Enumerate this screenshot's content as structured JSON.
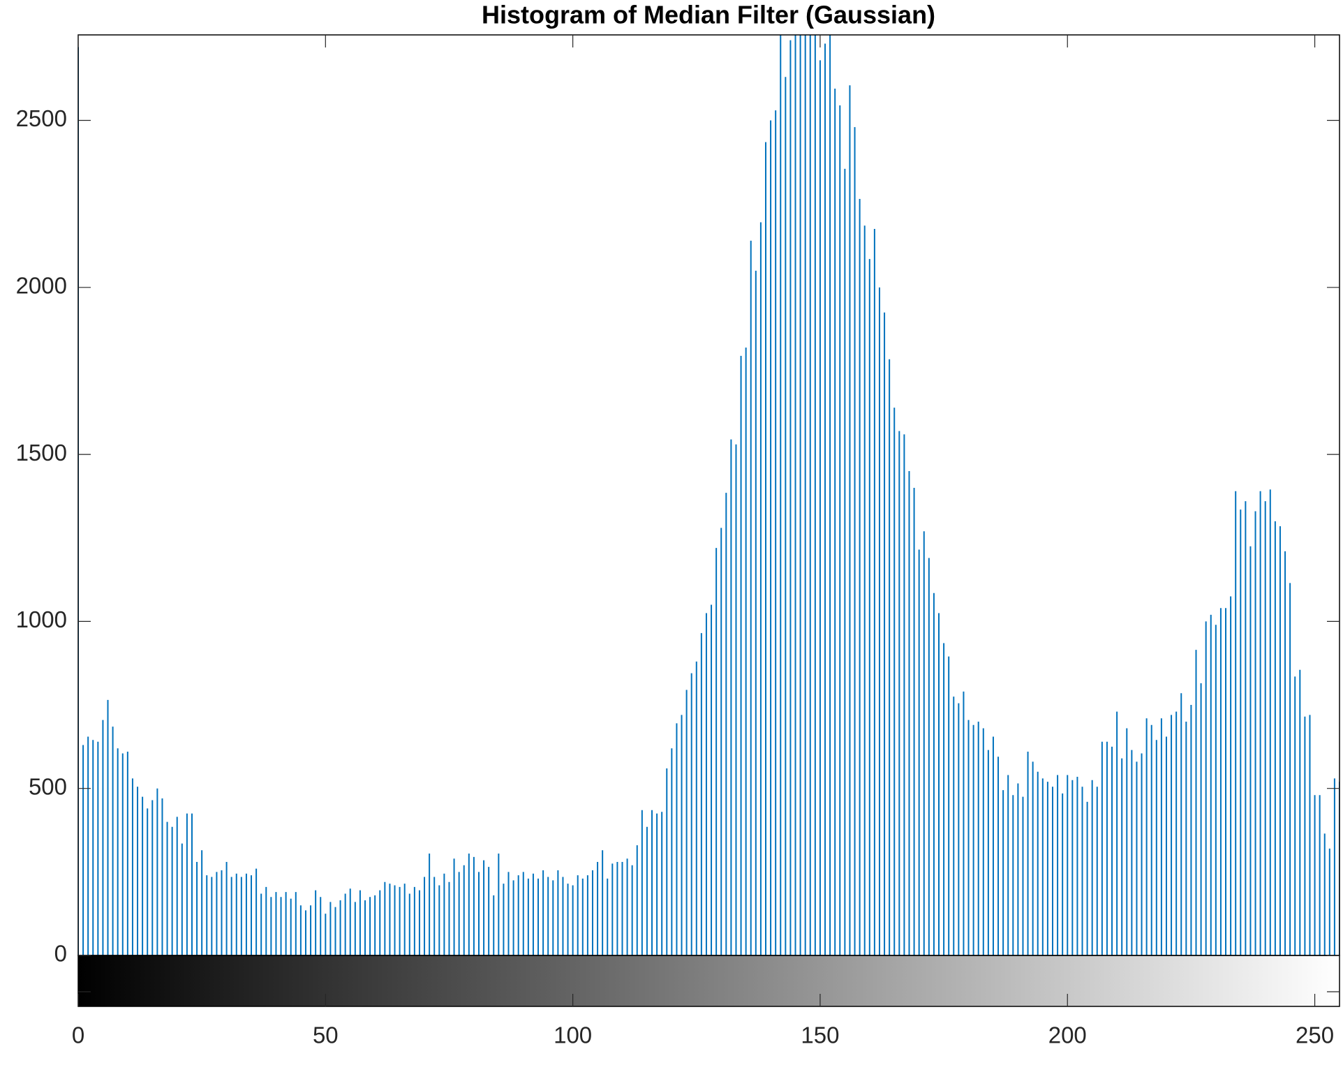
{
  "chart_data": {
    "type": "stem",
    "title": "Histogram of Median Filter (Gaussian)",
    "color": "#0072BD",
    "x": [
      0,
      1,
      2,
      3,
      4,
      5,
      6,
      7,
      8,
      9,
      10,
      11,
      12,
      13,
      14,
      15,
      16,
      17,
      18,
      19,
      20,
      21,
      22,
      23,
      24,
      25,
      26,
      27,
      28,
      29,
      30,
      31,
      32,
      33,
      34,
      35,
      36,
      37,
      38,
      39,
      40,
      41,
      42,
      43,
      44,
      45,
      46,
      47,
      48,
      49,
      50,
      51,
      52,
      53,
      54,
      55,
      56,
      57,
      58,
      59,
      60,
      61,
      62,
      63,
      64,
      65,
      66,
      67,
      68,
      69,
      70,
      71,
      72,
      73,
      74,
      75,
      76,
      77,
      78,
      79,
      80,
      81,
      82,
      83,
      84,
      85,
      86,
      87,
      88,
      89,
      90,
      91,
      92,
      93,
      94,
      95,
      96,
      97,
      98,
      99,
      100,
      101,
      102,
      103,
      104,
      105,
      106,
      107,
      108,
      109,
      110,
      111,
      112,
      113,
      114,
      115,
      116,
      117,
      118,
      119,
      120,
      121,
      122,
      123,
      124,
      125,
      126,
      127,
      128,
      129,
      130,
      131,
      132,
      133,
      134,
      135,
      136,
      137,
      138,
      139,
      140,
      141,
      142,
      143,
      144,
      145,
      146,
      147,
      148,
      149,
      150,
      151,
      152,
      153,
      154,
      155,
      156,
      157,
      158,
      159,
      160,
      161,
      162,
      163,
      164,
      165,
      166,
      167,
      168,
      169,
      170,
      171,
      172,
      173,
      174,
      175,
      176,
      177,
      178,
      179,
      180,
      181,
      182,
      183,
      184,
      185,
      186,
      187,
      188,
      189,
      190,
      191,
      192,
      193,
      194,
      195,
      196,
      197,
      198,
      199,
      200,
      201,
      202,
      203,
      204,
      205,
      206,
      207,
      208,
      209,
      210,
      211,
      212,
      213,
      214,
      215,
      216,
      217,
      218,
      219,
      220,
      221,
      222,
      223,
      224,
      225,
      226,
      227,
      228,
      229,
      230,
      231,
      232,
      233,
      234,
      235,
      236,
      237,
      238,
      239,
      240,
      241,
      242,
      243,
      244,
      245,
      246,
      247,
      248,
      249,
      250,
      251,
      252,
      253,
      254,
      255
    ],
    "values": [
      2720,
      630,
      655,
      645,
      640,
      705,
      765,
      685,
      620,
      605,
      610,
      530,
      505,
      475,
      440,
      465,
      500,
      470,
      400,
      385,
      415,
      335,
      425,
      425,
      280,
      315,
      240,
      235,
      250,
      255,
      280,
      235,
      245,
      235,
      245,
      240,
      260,
      185,
      205,
      175,
      190,
      175,
      190,
      170,
      190,
      150,
      135,
      150,
      195,
      175,
      125,
      160,
      145,
      165,
      185,
      200,
      160,
      195,
      165,
      175,
      180,
      195,
      220,
      215,
      210,
      205,
      215,
      185,
      205,
      195,
      235,
      305,
      235,
      210,
      245,
      220,
      290,
      250,
      270,
      305,
      295,
      250,
      285,
      265,
      180,
      305,
      215,
      250,
      225,
      240,
      250,
      230,
      245,
      230,
      255,
      235,
      225,
      255,
      235,
      215,
      210,
      240,
      230,
      240,
      255,
      280,
      315,
      230,
      275,
      280,
      280,
      290,
      270,
      330,
      435,
      385,
      435,
      425,
      430,
      560,
      620,
      695,
      720,
      795,
      845,
      880,
      965,
      1025,
      1050,
      1220,
      1280,
      1385,
      1545,
      1530,
      1795,
      1820,
      2140,
      2050,
      2195,
      2435,
      2500,
      2530,
      2780,
      2630,
      2740,
      2850,
      2900,
      2950,
      2900,
      2850,
      2680,
      2730,
      2800,
      2595,
      2545,
      2355,
      2605,
      2480,
      2265,
      2185,
      2085,
      2175,
      2000,
      1925,
      1785,
      1640,
      1570,
      1560,
      1450,
      1400,
      1215,
      1270,
      1190,
      1085,
      1025,
      935,
      895,
      775,
      755,
      790,
      705,
      690,
      700,
      680,
      615,
      655,
      595,
      495,
      540,
      480,
      515,
      475,
      610,
      580,
      550,
      530,
      520,
      505,
      540,
      485,
      540,
      525,
      535,
      505,
      460,
      525,
      505,
      640,
      640,
      625,
      730,
      590,
      680,
      615,
      580,
      605,
      710,
      690,
      645,
      710,
      655,
      720,
      730,
      785,
      700,
      750,
      915,
      815,
      1000,
      1020,
      990,
      1040,
      1040,
      1075,
      1390,
      1335,
      1360,
      1225,
      1330,
      1390,
      1360,
      1395,
      1300,
      1285,
      1210,
      1115,
      835,
      855,
      715,
      720,
      480,
      480,
      365,
      320,
      530,
      520
    ],
    "xlim": [
      0,
      255
    ],
    "ylim": [
      0,
      2756
    ],
    "xticks": [
      0,
      50,
      100,
      150,
      200,
      250
    ],
    "yticks": [
      0,
      500,
      1000,
      1500,
      2000,
      2500
    ],
    "colorbar": true
  }
}
